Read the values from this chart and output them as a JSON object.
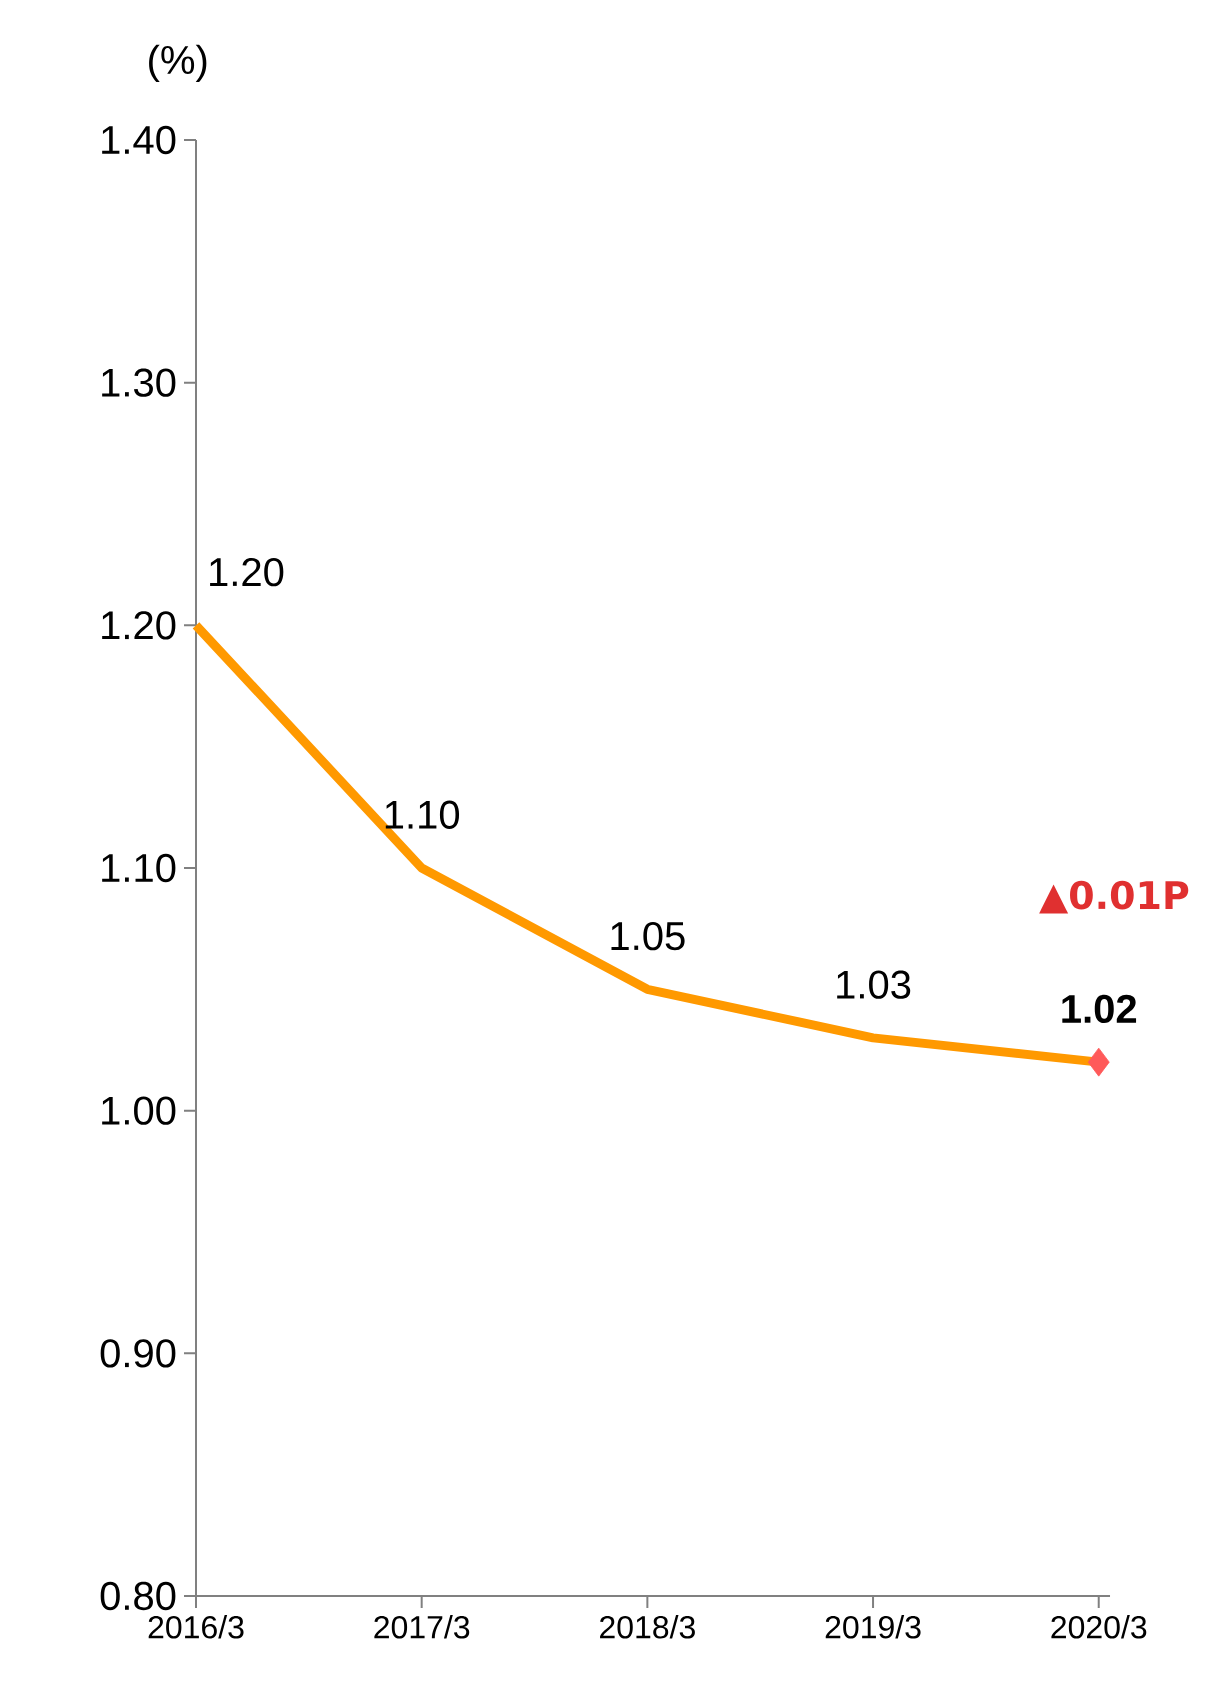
{
  "chart_data": {
    "type": "line",
    "ylabel": "(%)",
    "categories": [
      "2016/3",
      "2017/3",
      "2018/3",
      "2019/3",
      "2020/3"
    ],
    "series": [
      {
        "values": [
          1.2,
          1.1,
          1.05,
          1.03,
          1.02
        ],
        "color": "#ff9900",
        "value_labels": [
          "1.20",
          "1.10",
          "1.05",
          "1.03",
          "1.02"
        ]
      },
      {
        "type": "scatter",
        "x": [
          "2020/3"
        ],
        "values": [
          1.02
        ],
        "color": "#ff5a5a",
        "marker": "diamond"
      }
    ],
    "ylim": [
      0.8,
      1.4
    ],
    "yticks": [
      {
        "value": 0.8,
        "label": "0.80"
      },
      {
        "value": 0.9,
        "label": "0.90"
      },
      {
        "value": 1.0,
        "label": "1.00"
      },
      {
        "value": 1.1,
        "label": "1.10"
      },
      {
        "value": 1.2,
        "label": "1.20"
      },
      {
        "value": 1.3,
        "label": "1.30"
      },
      {
        "value": 1.4,
        "label": "1.40"
      }
    ],
    "annotations": [
      "▲0.01P"
    ]
  }
}
